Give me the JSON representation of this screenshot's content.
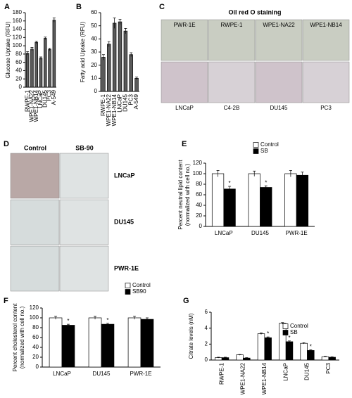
{
  "chart_data": [
    {
      "type": "bar",
      "panel_label": "A",
      "ylabel": [
        "Glucose Uptake (RFU)"
      ],
      "categories": [
        "RWPE-1",
        "WPE1-NA22",
        "WPE1-NB14",
        "LNCaP",
        "DU145",
        "PC3",
        "A-549"
      ],
      "values": [
        82,
        92,
        108,
        70,
        118,
        91,
        162
      ],
      "errors": [
        4,
        4,
        3,
        3,
        3,
        3,
        5
      ],
      "color": "#5a5a5a",
      "ylim": [
        0,
        180
      ],
      "yticks": [
        0,
        20,
        40,
        60,
        80,
        100,
        120,
        140,
        160,
        180
      ]
    },
    {
      "type": "bar",
      "panel_label": "B",
      "ylabel": [
        "Fatty acid Uptake (RFU)"
      ],
      "categories": [
        "RWPE-1",
        "WPE1-NA22",
        "WPE1-NB14",
        "LNCaP",
        "DU145",
        "PC3",
        "A-549"
      ],
      "values": [
        26,
        36,
        52,
        53,
        46,
        28,
        10
      ],
      "errors": [
        2,
        2,
        4,
        2,
        2,
        1.5,
        1
      ],
      "color": "#5a5a5a",
      "ylim": [
        0,
        60
      ],
      "yticks": [
        0,
        10,
        20,
        30,
        40,
        50,
        60
      ]
    },
    {
      "type": "bar",
      "panel_label": "E",
      "ylabel": [
        "Percent neutral lipid content",
        "(normalized with cell no.)"
      ],
      "categories": [
        "LNCaP",
        "DU145",
        "PWR-1E"
      ],
      "series": [
        {
          "name": "Control",
          "color": "#ffffff",
          "values": [
            100,
            100,
            100
          ],
          "errors": [
            6,
            5,
            6
          ]
        },
        {
          "name": "SB",
          "color": "#000000",
          "values": [
            71,
            74,
            97
          ],
          "errors": [
            5,
            3,
            6
          ],
          "markers": [
            "*",
            "*",
            null
          ]
        }
      ],
      "ylim": [
        0,
        120
      ],
      "yticks": [
        0,
        20,
        40,
        60,
        80,
        100,
        120
      ]
    },
    {
      "type": "bar",
      "panel_label": "F",
      "ylabel": [
        "Percent cholesterol content",
        "(normalized with cell no.)"
      ],
      "categories": [
        "LNCaP",
        "DU145",
        "PWR-1E"
      ],
      "series": [
        {
          "name": "Control",
          "color": "#ffffff",
          "values": [
            100,
            100,
            100
          ],
          "errors": [
            3,
            3,
            3
          ]
        },
        {
          "name": "SB90",
          "color": "#000000",
          "values": [
            85,
            87,
            97
          ],
          "errors": [
            2,
            2,
            3
          ],
          "markers": [
            "*",
            "*",
            null
          ]
        }
      ],
      "ylim": [
        0,
        120
      ],
      "yticks": [
        0,
        20,
        40,
        60,
        80,
        100,
        120
      ]
    },
    {
      "type": "bar",
      "panel_label": "G",
      "ylabel": [
        "Citrate levels (nM)"
      ],
      "categories": [
        "RWPE-1",
        "WPE1-NA22",
        "WPE1-NB14",
        "LNCaP",
        "DU145",
        "PC3"
      ],
      "series": [
        {
          "name": "Control",
          "color": "#ffffff",
          "values": [
            0.3,
            0.65,
            3.3,
            4.6,
            2.1,
            0.4
          ],
          "errors": [
            0.05,
            0.05,
            0.1,
            0.1,
            0.08,
            0.05
          ]
        },
        {
          "name": "SB",
          "color": "#000000",
          "values": [
            0.3,
            0.25,
            2.8,
            2.3,
            1.2,
            0.35
          ],
          "errors": [
            0.05,
            0.05,
            0.1,
            0.1,
            0.08,
            0.05
          ],
          "markers": [
            null,
            null,
            "*",
            "*",
            "*",
            null
          ]
        }
      ],
      "ylim": [
        0,
        6
      ],
      "yticks": [
        0,
        2,
        4,
        6
      ]
    }
  ],
  "figure": {
    "c": {
      "letter": "C",
      "title": "Oil red O staining",
      "top_labels": [
        "PWR-1E",
        "RWPE-1",
        "WPE1-NA22",
        "WPE1-NB14"
      ],
      "bottom_labels": [
        "LNCaP",
        "C4-2B",
        "DU145",
        "PC3"
      ]
    },
    "d": {
      "letter": "D",
      "columns": [
        "Control",
        "SB-90"
      ],
      "rows": [
        "LNCaP",
        "DU145",
        "PWR-1E"
      ]
    }
  }
}
